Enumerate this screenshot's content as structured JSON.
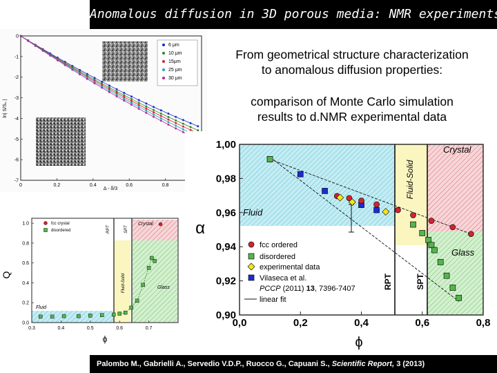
{
  "header": {
    "title": "Anomalous diffusion in 3D porous media: NMR experiments"
  },
  "headings": {
    "h1_line1": "From geometrical structure characterization",
    "h1_line2": "to anomalous diffusion properties:",
    "h2_line1": "comparison of Monte Carlo simulation",
    "h2_line2": "results to d.NMR experimental data"
  },
  "footer": {
    "citation_main": "Palombo M., Gabrielli A., Servedio V.D.P., Ruocco G., Capuani S., ",
    "journal": "Scientific Report,",
    "volume": " 3 (2013)"
  },
  "colors": {
    "blue": "#1d2ccf",
    "green": "#2e8b24",
    "red": "#d4232f",
    "cyan": "#22a7b3",
    "magenta": "#b02aa8"
  },
  "chart_data": [
    {
      "id": "nmr-decay",
      "type": "scatter",
      "title": "",
      "xlabel": "Δ - δ/3",
      "ylabel": "ln| S/S₀ |",
      "xlim": [
        0,
        1
      ],
      "ylim": [
        -7,
        0
      ],
      "xticks": [
        "0",
        "0.2",
        "0.4",
        "0.6",
        "0.8",
        "1"
      ],
      "yticks": [
        "0",
        "-1",
        "-2",
        "-3",
        "-4",
        "-5",
        "-6",
        "-7"
      ],
      "legend": {
        "placement": "top-right",
        "entries": [
          "6 μm",
          "10 μm",
          "15μm",
          "25 μm",
          "30 μm"
        ]
      },
      "series": [
        {
          "name": "6 μm",
          "color": "#1d2ccf",
          "slope": -5.35
        },
        {
          "name": "10 μm",
          "color": "#2e8b24",
          "slope": -5.55
        },
        {
          "name": "15μm",
          "color": "#d4232f",
          "slope": -5.7
        },
        {
          "name": "25 μm",
          "color": "#22a7b3",
          "slope": -5.85
        },
        {
          "name": "30 μm",
          "color": "#b02aa8",
          "slope": -6.0
        }
      ]
    },
    {
      "id": "q-vs-phi",
      "type": "scatter",
      "xlabel": "ϕ",
      "ylabel": "Q",
      "xlim": [
        0.3,
        0.8
      ],
      "ylim": [
        0,
        1.05
      ],
      "xticks": [
        "0.3",
        "0.4",
        "0.5",
        "0.6",
        "0.7"
      ],
      "yticks": [
        "0.0",
        "0.2",
        "0.4",
        "0.6",
        "0.8",
        "1.0"
      ],
      "legend": {
        "placement": "top-left",
        "entries": [
          "fcc crystal",
          "disordered"
        ]
      },
      "regions": [
        "Fluid",
        "RPT",
        "SPT",
        "Fluid-Solid",
        "Crystal",
        "Glass"
      ],
      "series": [
        {
          "name": "fcc crystal",
          "color": "#d4232f",
          "x": [
            0.74
          ],
          "y": [
            0.99
          ]
        },
        {
          "name": "disordered",
          "color": "#2e8b24",
          "x": [
            0.33,
            0.37,
            0.41,
            0.46,
            0.5,
            0.54,
            0.58,
            0.6,
            0.62,
            0.64,
            0.66,
            0.68,
            0.7,
            0.71,
            0.72
          ],
          "y": [
            0.06,
            0.06,
            0.065,
            0.065,
            0.07,
            0.075,
            0.08,
            0.09,
            0.1,
            0.15,
            0.22,
            0.38,
            0.55,
            0.65,
            0.62
          ]
        }
      ]
    },
    {
      "id": "alpha-vs-phi",
      "type": "scatter",
      "xlabel": "ϕ",
      "ylabel": "α",
      "xlim": [
        0.0,
        0.8
      ],
      "ylim": [
        0.9,
        1.0
      ],
      "xticks": [
        "0,0",
        "0,2",
        "0,4",
        "0,6",
        "0,8"
      ],
      "yticks": [
        "1,00",
        "0,98",
        "0,96",
        "0,94",
        "0,92",
        "0,90"
      ],
      "regions": [
        "Fluid",
        "Fluid-Solid",
        "Crystal",
        "Glass",
        "RPT",
        "SPT"
      ],
      "legend": {
        "placement": "bottom-left",
        "entries": [
          "fcc ordered",
          "disordered",
          "experimental data",
          "Vilaseca et al.",
          "PCCP (2011) 13, 7396-7407",
          "linear fit"
        ]
      },
      "series": [
        {
          "name": "fcc ordered",
          "color": "#d4232f",
          "x": [
            0.32,
            0.36,
            0.4,
            0.45,
            0.52,
            0.57,
            0.63,
            0.7,
            0.76
          ],
          "y": [
            0.9697,
            0.9685,
            0.967,
            0.9648,
            0.9615,
            0.9585,
            0.9552,
            0.9515,
            0.9475
          ]
        },
        {
          "name": "disordered",
          "color": "#2e8b24",
          "x": [
            0.1,
            0.57,
            0.6,
            0.62,
            0.63,
            0.64,
            0.66,
            0.68,
            0.7,
            0.72
          ],
          "y": [
            0.9913,
            0.953,
            0.948,
            0.944,
            0.941,
            0.938,
            0.931,
            0.923,
            0.916,
            0.91
          ]
        },
        {
          "name": "experimental data",
          "color": "#f2e61a",
          "x": [
            0.33,
            0.37,
            0.48
          ],
          "y": [
            0.9688,
            0.9662,
            0.9605
          ]
        },
        {
          "name": "Vilaseca et al.",
          "color": "#1d2ccf",
          "x": [
            0.1,
            0.2,
            0.28,
            0.4,
            0.45
          ],
          "y": [
            0.9913,
            0.9825,
            0.9727,
            0.9645,
            0.9615
          ]
        }
      ]
    }
  ],
  "plots": {
    "decay": {
      "xlabel": "Δ - δ/3",
      "ylabel": "ln| S/S₀ |",
      "legend": [
        "6 μm",
        "10 μm",
        "15μm",
        "25 μm",
        "30 μm"
      ],
      "xticks": [
        "0",
        "0.2",
        "0.4",
        "0.6",
        "0.8",
        "1"
      ],
      "yticks": [
        "0",
        "-1",
        "-2",
        "-3",
        "-4",
        "-5",
        "-6",
        "-7"
      ]
    },
    "q": {
      "xlabel": "ϕ",
      "ylabel": "Q",
      "legend": [
        "fcc crystal",
        "disordered"
      ],
      "xticks": [
        "0.3",
        "0.4",
        "0.5",
        "0.6",
        "0.7"
      ],
      "yticks": [
        "0.0",
        "0.2",
        "0.4",
        "0.6",
        "0.8",
        "1.0"
      ],
      "fluid": "Fluid",
      "rpt": "RPT",
      "spt": "SPT",
      "fluidsolid": "Fluid-Solid",
      "crystal": "Crystal",
      "glass": "Glass"
    },
    "alpha": {
      "xlabel": "ϕ",
      "ylabel": "α",
      "xticks": [
        "0,0",
        "0,2",
        "0,4",
        "0,6",
        "0,8"
      ],
      "yticks": [
        "1,00",
        "0,98",
        "0,96",
        "0,94",
        "0,92",
        "0,90"
      ],
      "fluid": "Fluid",
      "fluidsolid": "Fluid-Solid",
      "crystal": "Crystal",
      "glass": "Glass",
      "rpt": "RPT",
      "spt": "SPT",
      "legend": [
        "fcc ordered",
        "disordered",
        "experimental data",
        "Vilaseca et al."
      ],
      "pccp_a": "PCCP",
      "pccp_b": " (2011) ",
      "pccp_c": "13",
      "pccp_d": ", 7396-7407",
      "linearfit": "linear fit"
    }
  }
}
